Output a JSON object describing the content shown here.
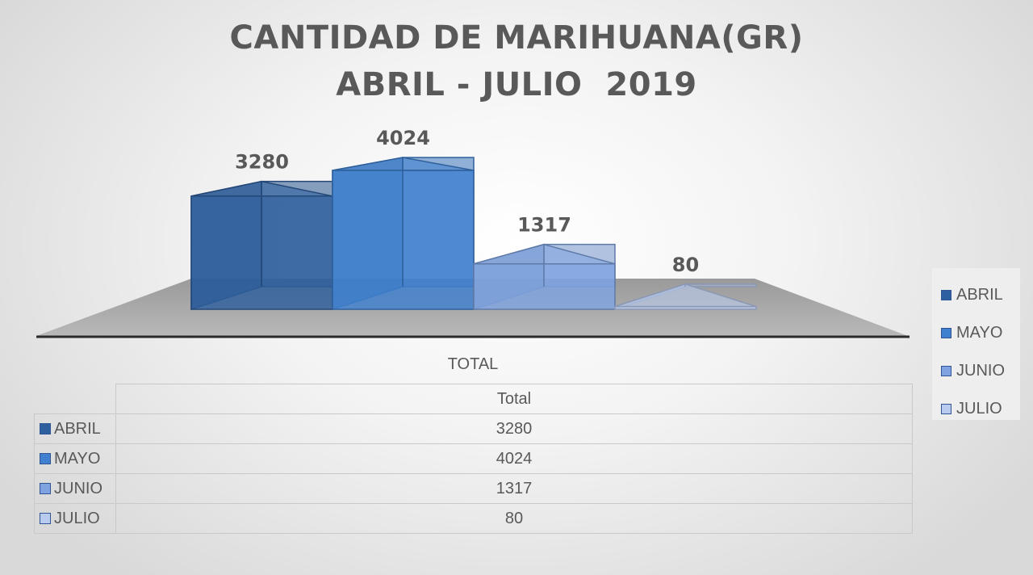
{
  "chart_data": {
    "type": "bar",
    "title": [
      "CANTIDAD DE MARIHUANA(GR)",
      "ABRIL - JULIO  2019"
    ],
    "categories": [
      "TOTAL"
    ],
    "xlabel": "TOTAL",
    "series": [
      {
        "name": "ABRIL",
        "values": [
          3280
        ],
        "color": "#2e5f9e"
      },
      {
        "name": "MAYO",
        "values": [
          4024
        ],
        "color": "#3f80cf"
      },
      {
        "name": "JUNIO",
        "values": [
          1317
        ],
        "color": "#7fa3e0"
      },
      {
        "name": "JULIO",
        "values": [
          80
        ],
        "color": "#b9cbee"
      }
    ],
    "ylim": [
      0,
      4500
    ],
    "data_labels": true,
    "legend_position": "right",
    "data_table": {
      "column_header": "Total",
      "rows": [
        {
          "label": "ABRIL",
          "value": "3280"
        },
        {
          "label": "MAYO",
          "value": "4024"
        },
        {
          "label": "JUNIO",
          "value": "1317"
        },
        {
          "label": "JULIO",
          "value": "80"
        }
      ]
    }
  }
}
